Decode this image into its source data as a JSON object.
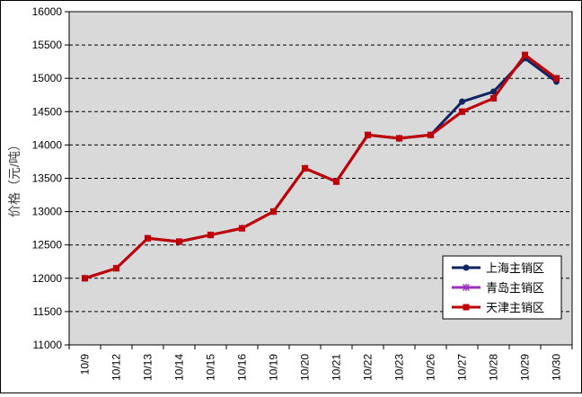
{
  "chart_data": {
    "type": "line",
    "ylabel": "价格（元/吨）",
    "ylim": [
      11000,
      16000
    ],
    "yticks": [
      11000,
      11500,
      12000,
      12500,
      13000,
      13500,
      14000,
      14500,
      15000,
      15500,
      16000
    ],
    "categories": [
      "10/9",
      "10/12",
      "10/13",
      "10/14",
      "10/15",
      "10/16",
      "10/19",
      "10/20",
      "10/21",
      "10/22",
      "10/23",
      "10/26",
      "10/27",
      "10/28",
      "10/29",
      "10/30"
    ],
    "grid": "horizontal-dashed",
    "legend": "bottom-right",
    "plot_background": "#d9d9d9",
    "series": [
      {
        "name": "上海主销区",
        "color": "#0f2463",
        "marker": "circle",
        "values": [
          12000,
          12150,
          12600,
          12550,
          12650,
          12750,
          13000,
          13650,
          13450,
          14150,
          14100,
          14150,
          14650,
          14800,
          15300,
          14950
        ]
      },
      {
        "name": "青岛主销区",
        "color": "#9b30c0",
        "marker": "asterisk",
        "values": [
          12000,
          12150,
          12600,
          12550,
          12650,
          12750,
          13000,
          13650,
          13450,
          14150,
          14100,
          14150,
          14500,
          14700,
          15350,
          15000
        ]
      },
      {
        "name": "天津主销区",
        "color": "#c00000",
        "marker": "square",
        "values": [
          12000,
          12150,
          12600,
          12550,
          12650,
          12750,
          13000,
          13650,
          13450,
          14150,
          14100,
          14150,
          14500,
          14700,
          15350,
          15000
        ]
      }
    ]
  }
}
